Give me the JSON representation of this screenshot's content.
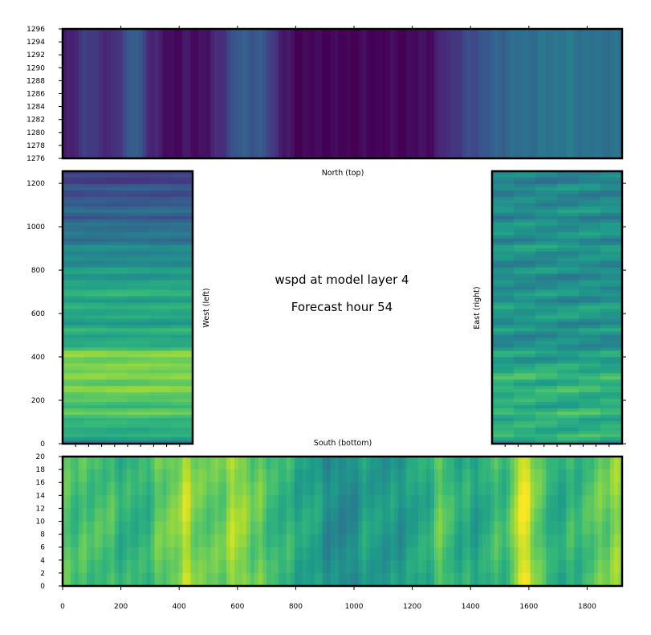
{
  "chart_data": [
    {
      "type": "heatmap",
      "panel": "north",
      "label": "North (top)",
      "colormap": "viridis",
      "xlim": [
        0,
        1920
      ],
      "ylim": [
        1276,
        1296
      ],
      "xticks": [
        200,
        400,
        600,
        800,
        1000,
        1200,
        1400,
        1600,
        1800
      ],
      "yticks": [
        1276,
        1278,
        1280,
        1282,
        1284,
        1286,
        1288,
        1290,
        1292,
        1294,
        1296
      ],
      "ytick_labels": [
        "1276",
        "1278",
        "1280",
        "1282",
        "1284",
        "1286",
        "1288",
        "1290",
        "1292",
        "1294",
        "1296"
      ],
      "profile_x": [
        0,
        60,
        100,
        140,
        170,
        200,
        250,
        300,
        350,
        380,
        420,
        500,
        560,
        600,
        640,
        700,
        760,
        800,
        900,
        1000,
        1100,
        1200,
        1280,
        1320,
        1380,
        1430,
        1480,
        1550,
        1600,
        1660,
        1720,
        1780,
        1840,
        1880,
        1920
      ],
      "profile_v": [
        0.06,
        0.14,
        0.2,
        0.12,
        0.1,
        0.2,
        0.32,
        0.12,
        0.04,
        0.03,
        0.04,
        0.05,
        0.18,
        0.28,
        0.3,
        0.24,
        0.06,
        0.02,
        0.01,
        0.01,
        0.01,
        0.02,
        0.06,
        0.14,
        0.2,
        0.26,
        0.3,
        0.35,
        0.36,
        0.38,
        0.4,
        0.38,
        0.36,
        0.38,
        0.36
      ]
    },
    {
      "type": "heatmap",
      "panel": "west",
      "label": "West (left)",
      "colormap": "viridis",
      "xlim": [
        0,
        20
      ],
      "ylim": [
        0,
        1256
      ],
      "yticks": [
        0,
        200,
        400,
        600,
        800,
        1000,
        1200
      ],
      "ytick_labels": [
        "0",
        "200",
        "400",
        "600",
        "800",
        "1000",
        "1200"
      ],
      "profile_y": [
        0,
        60,
        120,
        200,
        260,
        320,
        400,
        460,
        560,
        700,
        800,
        900,
        1000,
        1100,
        1200,
        1256
      ],
      "profile_v": [
        0.5,
        0.62,
        0.7,
        0.72,
        0.8,
        0.78,
        0.82,
        0.62,
        0.58,
        0.62,
        0.52,
        0.45,
        0.35,
        0.3,
        0.22,
        0.18
      ]
    },
    {
      "type": "heatmap",
      "panel": "east",
      "label": "East (right)",
      "colormap": "viridis",
      "xlim": [
        0,
        20
      ],
      "ylim": [
        0,
        1256
      ],
      "profile_y": [
        0,
        100,
        200,
        300,
        400,
        500,
        600,
        700,
        800,
        900,
        1000,
        1100,
        1200,
        1256
      ],
      "profile_v": [
        0.6,
        0.64,
        0.62,
        0.66,
        0.55,
        0.48,
        0.55,
        0.5,
        0.48,
        0.52,
        0.5,
        0.48,
        0.45,
        0.46
      ]
    },
    {
      "type": "heatmap",
      "panel": "south",
      "label": "South (bottom)",
      "colormap": "viridis",
      "xlim": [
        0,
        1920
      ],
      "ylim": [
        0,
        20
      ],
      "xticks": [
        0,
        200,
        400,
        600,
        800,
        1000,
        1200,
        1400,
        1600,
        1800
      ],
      "xtick_labels": [
        "0",
        "200",
        "400",
        "600",
        "800",
        "1000",
        "1200",
        "1400",
        "1600",
        "1800"
      ],
      "yticks": [
        0,
        2,
        4,
        6,
        8,
        10,
        12,
        14,
        16,
        18,
        20
      ],
      "ytick_labels": [
        "0",
        "2",
        "4",
        "6",
        "8",
        "10",
        "12",
        "14",
        "16",
        "18",
        "20"
      ],
      "profile_x": [
        0,
        60,
        120,
        200,
        260,
        320,
        380,
        420,
        470,
        520,
        580,
        640,
        700,
        760,
        820,
        880,
        920,
        960,
        1000,
        1060,
        1120,
        1180,
        1240,
        1300,
        1360,
        1420,
        1480,
        1540,
        1570,
        1600,
        1640,
        1700,
        1760,
        1820,
        1880,
        1920
      ],
      "profile_v": [
        0.75,
        0.68,
        0.72,
        0.66,
        0.62,
        0.72,
        0.8,
        0.88,
        0.78,
        0.72,
        0.86,
        0.8,
        0.7,
        0.64,
        0.6,
        0.56,
        0.48,
        0.45,
        0.5,
        0.58,
        0.52,
        0.55,
        0.6,
        0.75,
        0.62,
        0.58,
        0.66,
        0.72,
        0.96,
        0.94,
        0.7,
        0.6,
        0.66,
        0.72,
        0.8,
        0.82
      ]
    }
  ],
  "title": {
    "line1": "wspd at model layer 4",
    "line2": "Forecast hour 54"
  },
  "colors": {
    "viridis": [
      "#440154",
      "#482878",
      "#3e4989",
      "#31688e",
      "#26828e",
      "#1f9e89",
      "#35b779",
      "#6ece58",
      "#b5de2b",
      "#fde725"
    ]
  }
}
